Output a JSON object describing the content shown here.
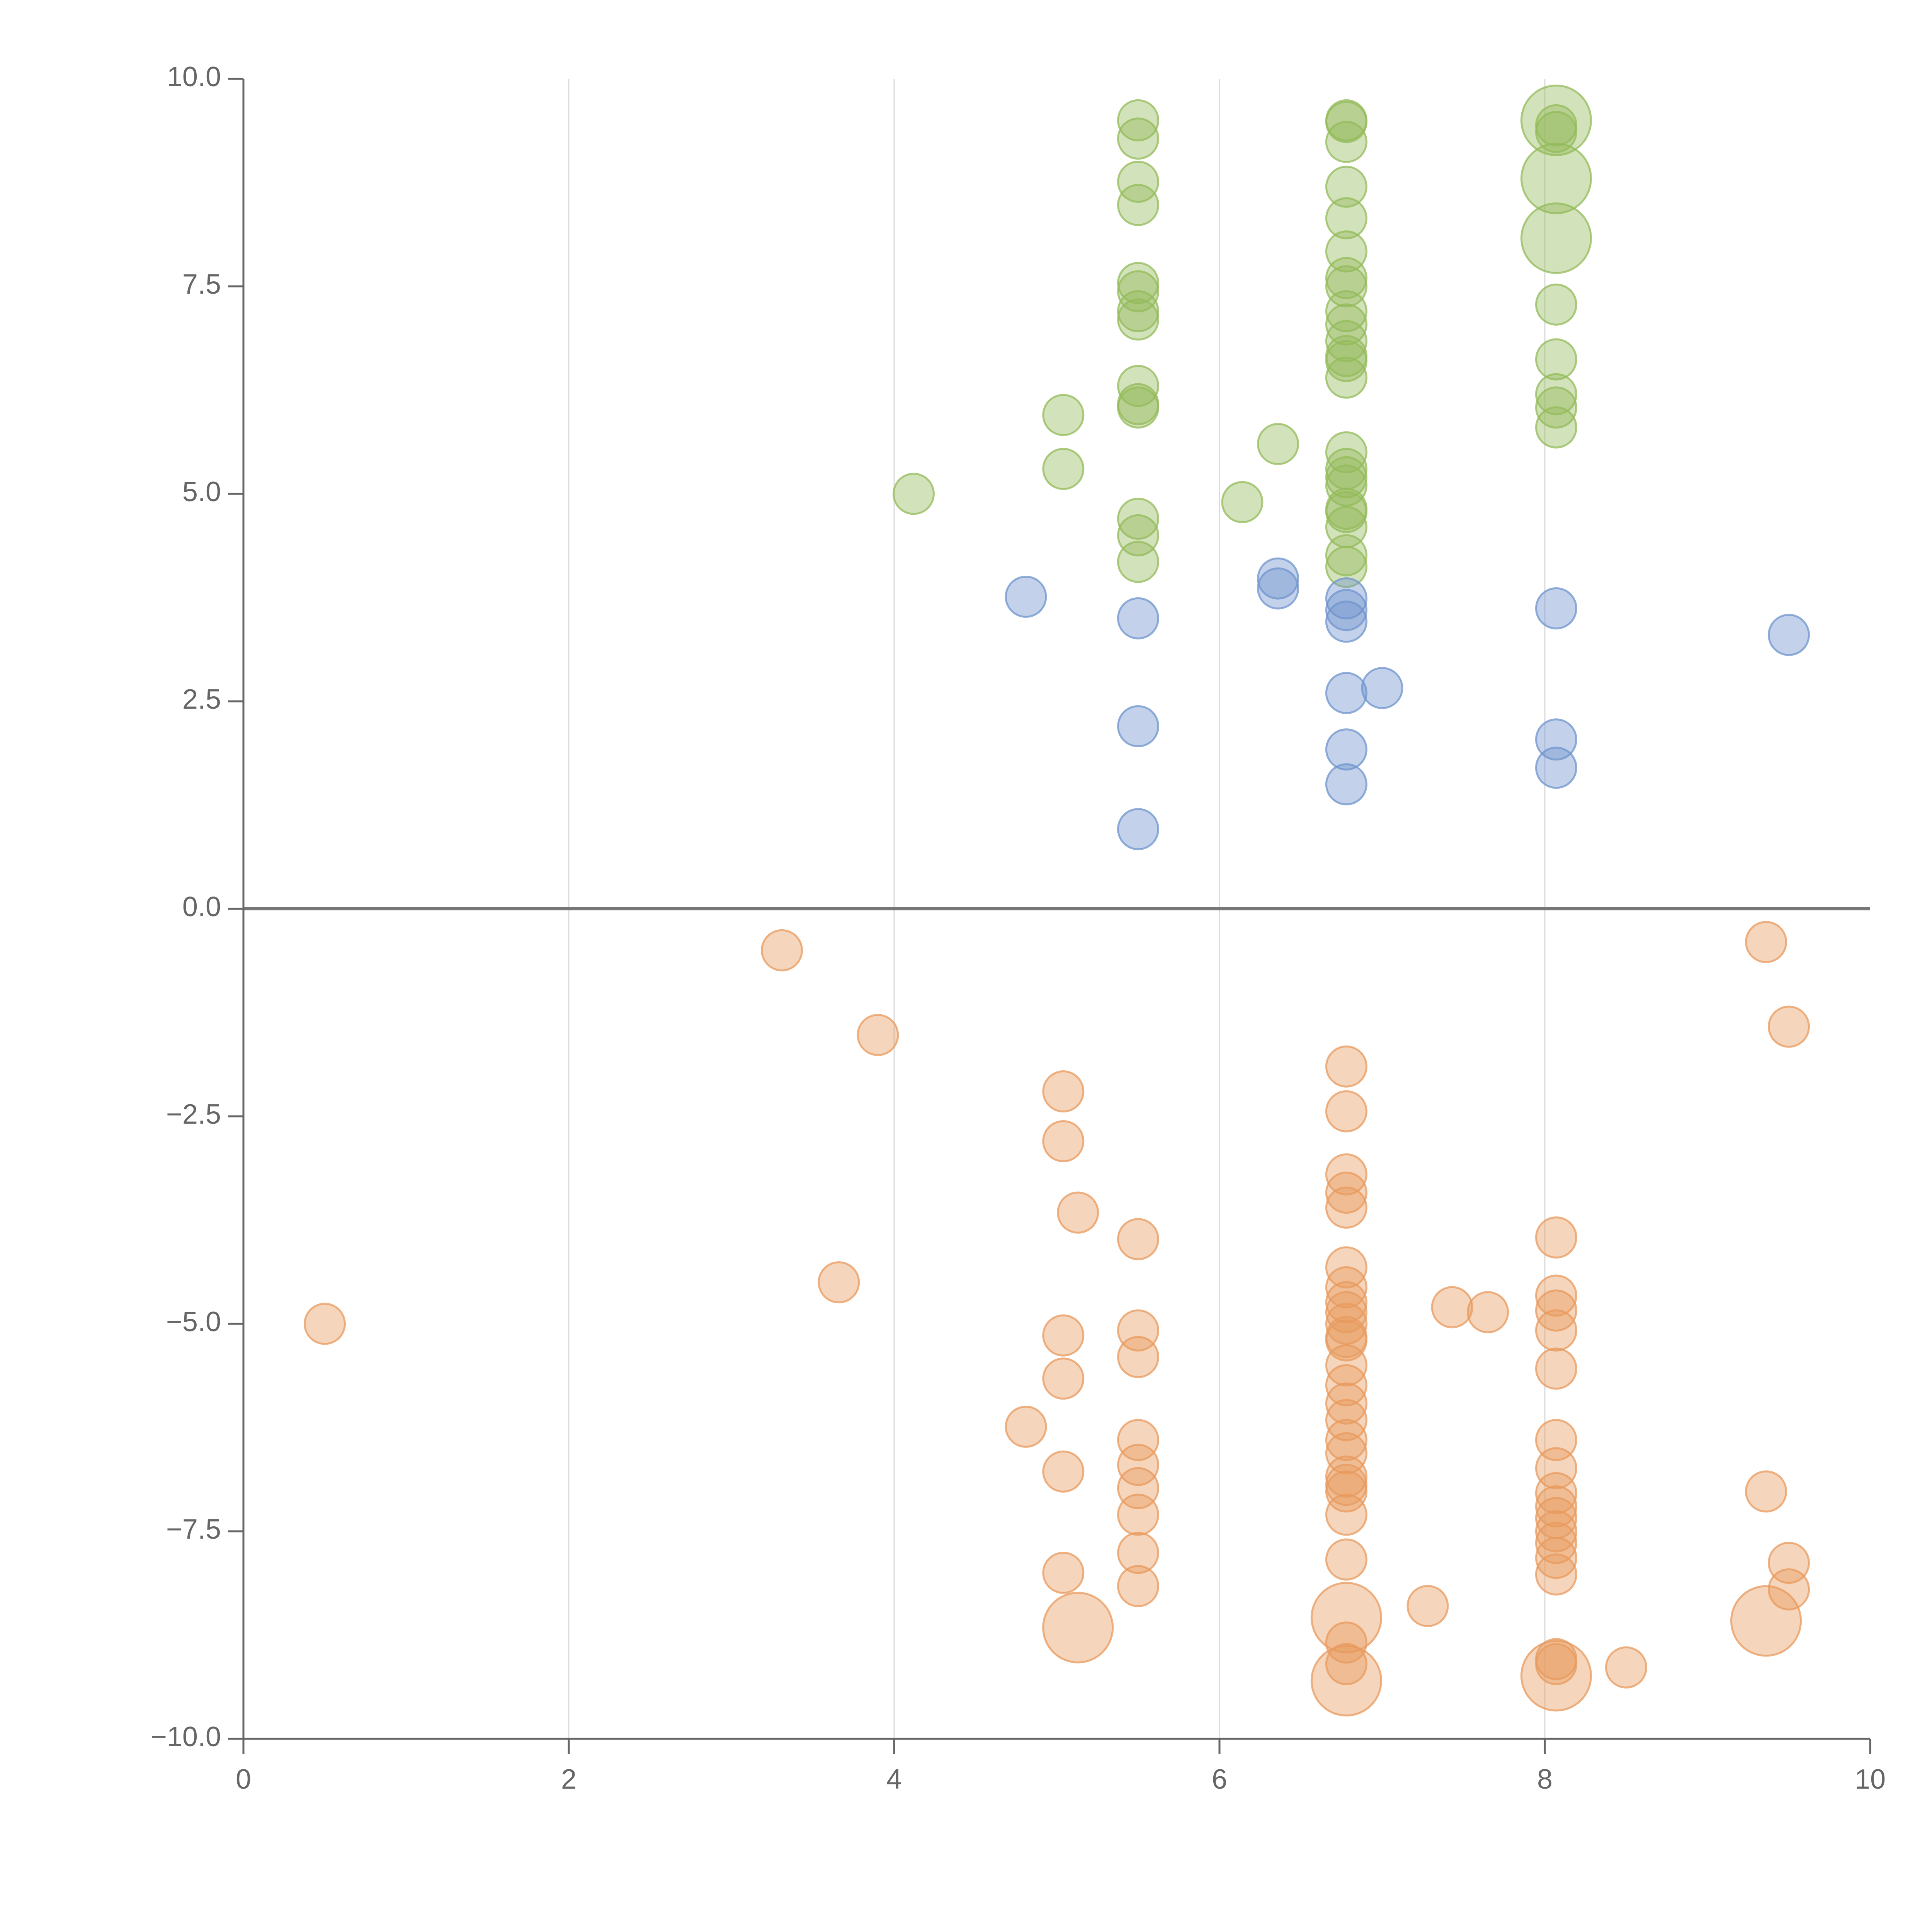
{
  "chart_data": {
    "type": "scatter",
    "title": "",
    "xlabel": "",
    "ylabel": "",
    "xlim": [
      0,
      10
    ],
    "ylim": [
      -10,
      10
    ],
    "x_ticks": [
      0,
      2,
      4,
      6,
      8,
      10
    ],
    "x_tick_labels": [
      "0",
      "2",
      "4",
      "6",
      "8",
      "10"
    ],
    "y_ticks": [
      -10,
      -7.5,
      -5,
      -2.5,
      0,
      2.5,
      5,
      7.5,
      10
    ],
    "y_tick_labels": [
      "−10.0",
      "−7.5",
      "−5.0",
      "−2.5",
      "0.0",
      "2.5",
      "5.0",
      "7.5",
      "10.0"
    ],
    "grid": {
      "vertical": true,
      "horizontal": false
    },
    "zero_line": true,
    "colors": {
      "green": "#93bb5a",
      "blue": "#6f94cd",
      "orange": "#e89a5e",
      "axis": "#666666",
      "grid": "#d9d9d9",
      "zero_line": "#777777"
    },
    "series": [
      {
        "color": "green",
        "points": [
          [
            4.12,
            5.0,
            1
          ],
          [
            5.04,
            5.95,
            1
          ],
          [
            5.04,
            5.3,
            1
          ],
          [
            6.14,
            4.9,
            1
          ],
          [
            6.36,
            5.6,
            1
          ],
          [
            5.5,
            9.5,
            1
          ],
          [
            5.5,
            9.28,
            1
          ],
          [
            5.5,
            8.76,
            1
          ],
          [
            5.5,
            8.48,
            1
          ],
          [
            5.5,
            7.54,
            1
          ],
          [
            5.5,
            7.44,
            1
          ],
          [
            5.5,
            7.2,
            1
          ],
          [
            5.5,
            7.1,
            1
          ],
          [
            5.5,
            6.3,
            1
          ],
          [
            5.5,
            6.08,
            1
          ],
          [
            5.5,
            6.04,
            1
          ],
          [
            5.5,
            4.7,
            1
          ],
          [
            5.5,
            4.5,
            1
          ],
          [
            5.5,
            4.18,
            1
          ],
          [
            6.78,
            9.5,
            1
          ],
          [
            6.78,
            9.48,
            1
          ],
          [
            6.78,
            9.24,
            1
          ],
          [
            6.78,
            8.7,
            1
          ],
          [
            6.78,
            8.32,
            1
          ],
          [
            6.78,
            7.92,
            1
          ],
          [
            6.78,
            7.6,
            1
          ],
          [
            6.78,
            7.5,
            1
          ],
          [
            6.78,
            7.2,
            1
          ],
          [
            6.78,
            7.04,
            1
          ],
          [
            6.78,
            6.84,
            1
          ],
          [
            6.78,
            6.66,
            1
          ],
          [
            6.78,
            6.6,
            1
          ],
          [
            6.78,
            6.4,
            1
          ],
          [
            6.78,
            5.5,
            1
          ],
          [
            6.78,
            5.3,
            1
          ],
          [
            6.78,
            5.2,
            1
          ],
          [
            6.78,
            5.1,
            1
          ],
          [
            6.78,
            4.82,
            1
          ],
          [
            6.78,
            4.78,
            1
          ],
          [
            6.78,
            4.6,
            1
          ],
          [
            6.78,
            4.26,
            1
          ],
          [
            6.78,
            4.12,
            1
          ],
          [
            8.07,
            9.5,
            3
          ],
          [
            8.07,
            8.8,
            3
          ],
          [
            8.07,
            8.08,
            3
          ],
          [
            8.07,
            9.44,
            1
          ],
          [
            8.07,
            9.36,
            1
          ],
          [
            8.07,
            7.28,
            1
          ],
          [
            8.07,
            6.62,
            1
          ],
          [
            8.07,
            6.2,
            1
          ],
          [
            8.07,
            6.04,
            1
          ],
          [
            8.07,
            5.8,
            1
          ]
        ]
      },
      {
        "color": "blue",
        "points": [
          [
            4.81,
            3.76,
            1
          ],
          [
            5.5,
            3.5,
            1
          ],
          [
            5.5,
            2.2,
            1
          ],
          [
            5.5,
            0.96,
            1
          ],
          [
            6.36,
            3.98,
            1
          ],
          [
            6.36,
            3.86,
            1
          ],
          [
            6.78,
            3.74,
            1
          ],
          [
            6.78,
            3.6,
            1
          ],
          [
            6.78,
            3.46,
            1
          ],
          [
            6.78,
            2.6,
            1
          ],
          [
            6.78,
            1.92,
            1
          ],
          [
            6.78,
            1.5,
            1
          ],
          [
            7.0,
            2.66,
            1
          ],
          [
            8.07,
            3.62,
            1
          ],
          [
            8.07,
            2.04,
            1
          ],
          [
            8.07,
            1.7,
            1
          ],
          [
            9.5,
            3.3,
            1
          ]
        ]
      },
      {
        "color": "orange",
        "points": [
          [
            0.5,
            -5.0,
            1
          ],
          [
            3.31,
            -0.5,
            1
          ],
          [
            3.66,
            -4.5,
            1
          ],
          [
            3.9,
            -1.52,
            1
          ],
          [
            4.81,
            -6.24,
            1
          ],
          [
            5.04,
            -2.2,
            1
          ],
          [
            5.04,
            -2.8,
            1
          ],
          [
            5.04,
            -5.14,
            1
          ],
          [
            5.04,
            -5.66,
            1
          ],
          [
            5.04,
            -6.78,
            1
          ],
          [
            5.04,
            -8.0,
            1
          ],
          [
            5.13,
            -3.66,
            1
          ],
          [
            5.13,
            -8.66,
            3
          ],
          [
            5.5,
            -3.98,
            1
          ],
          [
            5.5,
            -5.08,
            1
          ],
          [
            5.5,
            -5.4,
            1
          ],
          [
            5.5,
            -6.4,
            1
          ],
          [
            5.5,
            -6.7,
            1
          ],
          [
            5.5,
            -6.98,
            1
          ],
          [
            5.5,
            -7.3,
            1
          ],
          [
            5.5,
            -7.76,
            1
          ],
          [
            5.5,
            -8.16,
            1
          ],
          [
            6.78,
            -1.9,
            1
          ],
          [
            6.78,
            -2.44,
            1
          ],
          [
            6.78,
            -3.2,
            1
          ],
          [
            6.78,
            -3.42,
            1
          ],
          [
            6.78,
            -3.6,
            1
          ],
          [
            6.78,
            -4.32,
            1
          ],
          [
            6.78,
            -4.56,
            1
          ],
          [
            6.78,
            -4.74,
            1
          ],
          [
            6.78,
            -4.86,
            1
          ],
          [
            6.78,
            -5.0,
            1
          ],
          [
            6.78,
            -5.16,
            1
          ],
          [
            6.78,
            -5.2,
            1
          ],
          [
            6.78,
            -5.5,
            1
          ],
          [
            6.78,
            -5.74,
            1
          ],
          [
            6.78,
            -5.96,
            1
          ],
          [
            6.78,
            -6.16,
            1
          ],
          [
            6.78,
            -6.4,
            1
          ],
          [
            6.78,
            -6.56,
            1
          ],
          [
            6.78,
            -6.84,
            1
          ],
          [
            6.78,
            -6.94,
            1
          ],
          [
            6.78,
            -7.02,
            1
          ],
          [
            6.78,
            -7.3,
            1
          ],
          [
            6.78,
            -7.84,
            1
          ],
          [
            6.78,
            -8.54,
            3
          ],
          [
            6.78,
            -8.84,
            1
          ],
          [
            6.78,
            -9.1,
            1
          ],
          [
            6.78,
            -9.3,
            3
          ],
          [
            7.28,
            -8.4,
            1
          ],
          [
            7.43,
            -4.8,
            1
          ],
          [
            7.65,
            -4.86,
            1
          ],
          [
            8.07,
            -3.96,
            1
          ],
          [
            8.07,
            -4.66,
            1
          ],
          [
            8.07,
            -4.84,
            1
          ],
          [
            8.07,
            -5.08,
            1
          ],
          [
            8.07,
            -5.54,
            1
          ],
          [
            8.07,
            -6.4,
            1
          ],
          [
            8.07,
            -6.74,
            1
          ],
          [
            8.07,
            -7.04,
            1
          ],
          [
            8.07,
            -7.2,
            1
          ],
          [
            8.07,
            -7.34,
            1
          ],
          [
            8.07,
            -7.5,
            1
          ],
          [
            8.07,
            -7.64,
            1
          ],
          [
            8.07,
            -7.82,
            1
          ],
          [
            8.07,
            -8.02,
            1
          ],
          [
            8.07,
            -9.04,
            1
          ],
          [
            8.07,
            -9.1,
            1
          ],
          [
            8.07,
            -9.24,
            3
          ],
          [
            8.5,
            -9.14,
            1
          ],
          [
            9.36,
            -0.4,
            1
          ],
          [
            9.36,
            -7.02,
            1
          ],
          [
            9.36,
            -8.58,
            3
          ],
          [
            9.5,
            -1.42,
            1
          ],
          [
            9.5,
            -7.88,
            1
          ],
          [
            9.5,
            -8.2,
            1
          ]
        ]
      }
    ]
  }
}
